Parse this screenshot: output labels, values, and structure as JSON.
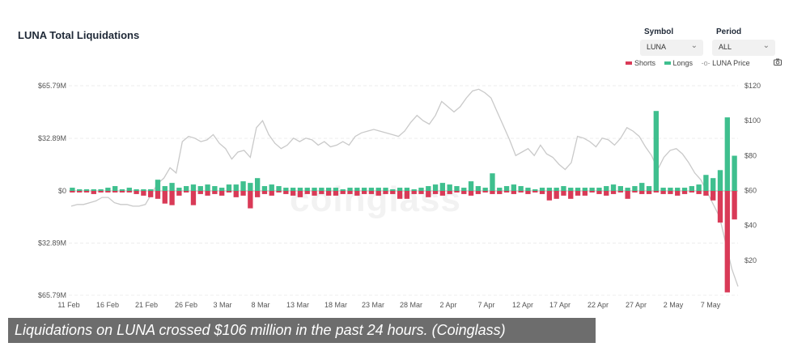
{
  "title": "LUNA Total Liquidations",
  "controls": {
    "symbol_label": "Symbol",
    "symbol_value": "LUNA",
    "period_label": "Period",
    "period_value": "ALL"
  },
  "legend": {
    "shorts": "Shorts",
    "longs": "Longs",
    "price": "LUNA Price"
  },
  "colors": {
    "longs": "#3fbf8e",
    "shorts": "#d93a57",
    "price": "#c9c9c9"
  },
  "watermark": "coinglass",
  "caption": "Liquidations on LUNA crossed $106 million in the past 24 hours. (Coinglass)",
  "chart_data": {
    "type": "bar",
    "title": "LUNA Total Liquidations",
    "x_ticks": [
      "11 Feb",
      "16 Feb",
      "21 Feb",
      "26 Feb",
      "3 Mar",
      "8 Mar",
      "13 Mar",
      "18 Mar",
      "23 Mar",
      "28 Mar",
      "2 Apr",
      "7 Apr",
      "12 Apr",
      "17 Apr",
      "22 Apr",
      "27 Apr",
      "2 May",
      "7 May"
    ],
    "y_left_ticks": [
      "$65.79M",
      "$32.89M",
      "$0",
      "$32.89M",
      "$65.79M"
    ],
    "y_left_range": [
      -65.79,
      65.79
    ],
    "y_right_ticks": [
      "$120",
      "$100",
      "$80",
      "$60",
      "$40",
      "$20"
    ],
    "y_right_range": [
      0,
      120
    ],
    "series": [
      {
        "name": "Longs",
        "values": [
          2,
          1,
          1,
          1,
          1,
          2,
          3,
          1,
          2,
          1,
          1,
          1,
          7,
          3,
          5,
          2,
          3,
          4,
          3,
          4,
          3,
          2,
          4,
          4,
          6,
          5,
          8,
          3,
          4,
          3,
          2,
          2,
          2,
          2,
          2,
          2,
          2,
          2,
          1,
          2,
          2,
          2,
          2,
          2,
          2,
          1,
          2,
          2,
          1,
          2,
          3,
          4,
          5,
          4,
          3,
          2,
          6,
          3,
          2,
          11,
          2,
          3,
          4,
          3,
          2,
          1,
          2,
          2,
          2,
          3,
          2,
          2,
          2,
          2,
          2,
          3,
          4,
          3,
          2,
          3,
          5,
          3,
          50,
          2,
          2,
          2,
          2,
          3,
          4,
          10,
          8,
          13,
          46,
          22
        ]
      },
      {
        "name": "Shorts",
        "values": [
          -1,
          -1,
          -1,
          -2,
          -1,
          -1,
          -1,
          -1,
          -1,
          -2,
          -3,
          -4,
          -5,
          -8,
          -9,
          -3,
          -1,
          -9,
          -2,
          -3,
          -2,
          -3,
          -1,
          -4,
          -3,
          -11,
          -4,
          -2,
          -3,
          -1,
          -2,
          -3,
          -4,
          -2,
          -3,
          -2,
          -3,
          -3,
          -2,
          -2,
          -3,
          -2,
          -2,
          -3,
          -2,
          -2,
          -5,
          -5,
          -2,
          -2,
          -4,
          -2,
          -3,
          -2,
          -1,
          -2,
          -3,
          -2,
          -1,
          -2,
          -2,
          -1,
          -2,
          -1,
          -2,
          -1,
          -2,
          -6,
          -5,
          -3,
          -5,
          -3,
          -3,
          -1,
          -2,
          -3,
          -2,
          -1,
          -5,
          -1,
          -2,
          -2,
          -1,
          -2,
          -2,
          -3,
          -2,
          -1,
          -2,
          -3,
          -6,
          -20,
          -64,
          -18
        ]
      },
      {
        "name": "LUNA Price",
        "values": [
          51,
          52,
          52,
          53,
          54,
          56,
          56,
          53,
          52,
          52,
          51,
          51,
          52,
          58,
          64,
          67,
          73,
          70,
          88,
          91,
          90,
          88,
          89,
          92,
          87,
          84,
          78,
          82,
          83,
          79,
          96,
          100,
          92,
          87,
          84,
          86,
          90,
          88,
          90,
          89,
          86,
          88,
          85,
          86,
          88,
          86,
          91,
          93,
          94,
          95,
          94,
          93,
          92,
          91,
          94,
          99,
          103,
          100,
          98,
          103,
          111,
          108,
          105,
          108,
          113,
          117,
          118,
          116,
          113,
          105,
          97,
          89,
          80,
          82,
          84,
          80,
          86,
          81,
          79,
          75,
          72,
          76,
          91,
          90,
          88,
          85,
          90,
          89,
          86,
          90,
          96,
          94,
          91,
          85,
          80,
          72,
          79,
          83,
          84,
          81,
          76,
          70,
          66,
          59,
          52,
          45,
          30,
          15,
          5
        ]
      }
    ]
  }
}
